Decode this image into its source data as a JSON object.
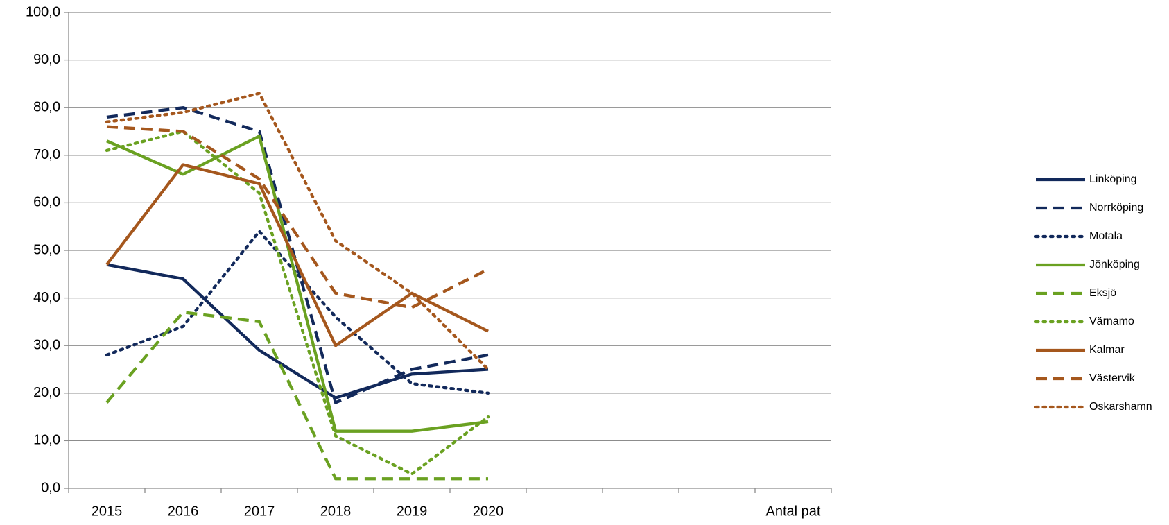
{
  "chart_data": {
    "type": "line",
    "categories": [
      "2015",
      "2016",
      "2017",
      "2018",
      "2019",
      "2020",
      null,
      null,
      null,
      "Antal pat"
    ],
    "ylim": [
      0,
      100
    ],
    "yticks": [
      {
        "value": 0,
        "label": "0,0"
      },
      {
        "value": 10,
        "label": "10,0"
      },
      {
        "value": 20,
        "label": "20,0"
      },
      {
        "value": 30,
        "label": "30,0"
      },
      {
        "value": 40,
        "label": "40,0"
      },
      {
        "value": 50,
        "label": "50,0"
      },
      {
        "value": 60,
        "label": "60,0"
      },
      {
        "value": 70,
        "label": "70,0"
      },
      {
        "value": 80,
        "label": "80,0"
      },
      {
        "value": 90,
        "label": "90,0"
      },
      {
        "value": 100,
        "label": "100,0"
      }
    ],
    "grid": true,
    "legend": "right",
    "series": [
      {
        "name": "Linköping",
        "color": "#12295b",
        "dash": "solid",
        "values": [
          47,
          44,
          29,
          19,
          24,
          25,
          null,
          null,
          null,
          null
        ]
      },
      {
        "name": "Norrköping",
        "color": "#12295b",
        "dash": "dashed",
        "values": [
          78,
          80,
          75,
          18,
          25,
          28,
          null,
          null,
          null,
          null
        ]
      },
      {
        "name": "Motala",
        "color": "#12295b",
        "dash": "dotted",
        "values": [
          28,
          34,
          54,
          36,
          22,
          20,
          null,
          null,
          null,
          null
        ]
      },
      {
        "name": "Jönköping",
        "color": "#6aa121",
        "dash": "solid",
        "values": [
          73,
          66,
          74,
          12,
          12,
          14,
          null,
          null,
          null,
          null
        ]
      },
      {
        "name": "Eksjö",
        "color": "#6aa121",
        "dash": "dashed",
        "values": [
          18,
          37,
          35,
          2,
          2,
          2,
          null,
          null,
          null,
          null
        ]
      },
      {
        "name": "Värnamo",
        "color": "#6aa121",
        "dash": "dotted",
        "values": [
          71,
          75,
          62,
          11,
          3,
          15,
          null,
          null,
          null,
          null
        ]
      },
      {
        "name": "Kalmar",
        "color": "#a5571d",
        "dash": "solid",
        "values": [
          47,
          68,
          64,
          30,
          41,
          33,
          null,
          null,
          null,
          null
        ]
      },
      {
        "name": "Västervik",
        "color": "#a5571d",
        "dash": "dashed",
        "values": [
          76,
          75,
          65,
          41,
          38,
          46,
          null,
          null,
          null,
          null
        ]
      },
      {
        "name": "Oskarshamn",
        "color": "#a5571d",
        "dash": "dotted",
        "values": [
          77,
          79,
          83,
          52,
          41,
          25,
          null,
          null,
          null,
          null
        ]
      }
    ]
  }
}
